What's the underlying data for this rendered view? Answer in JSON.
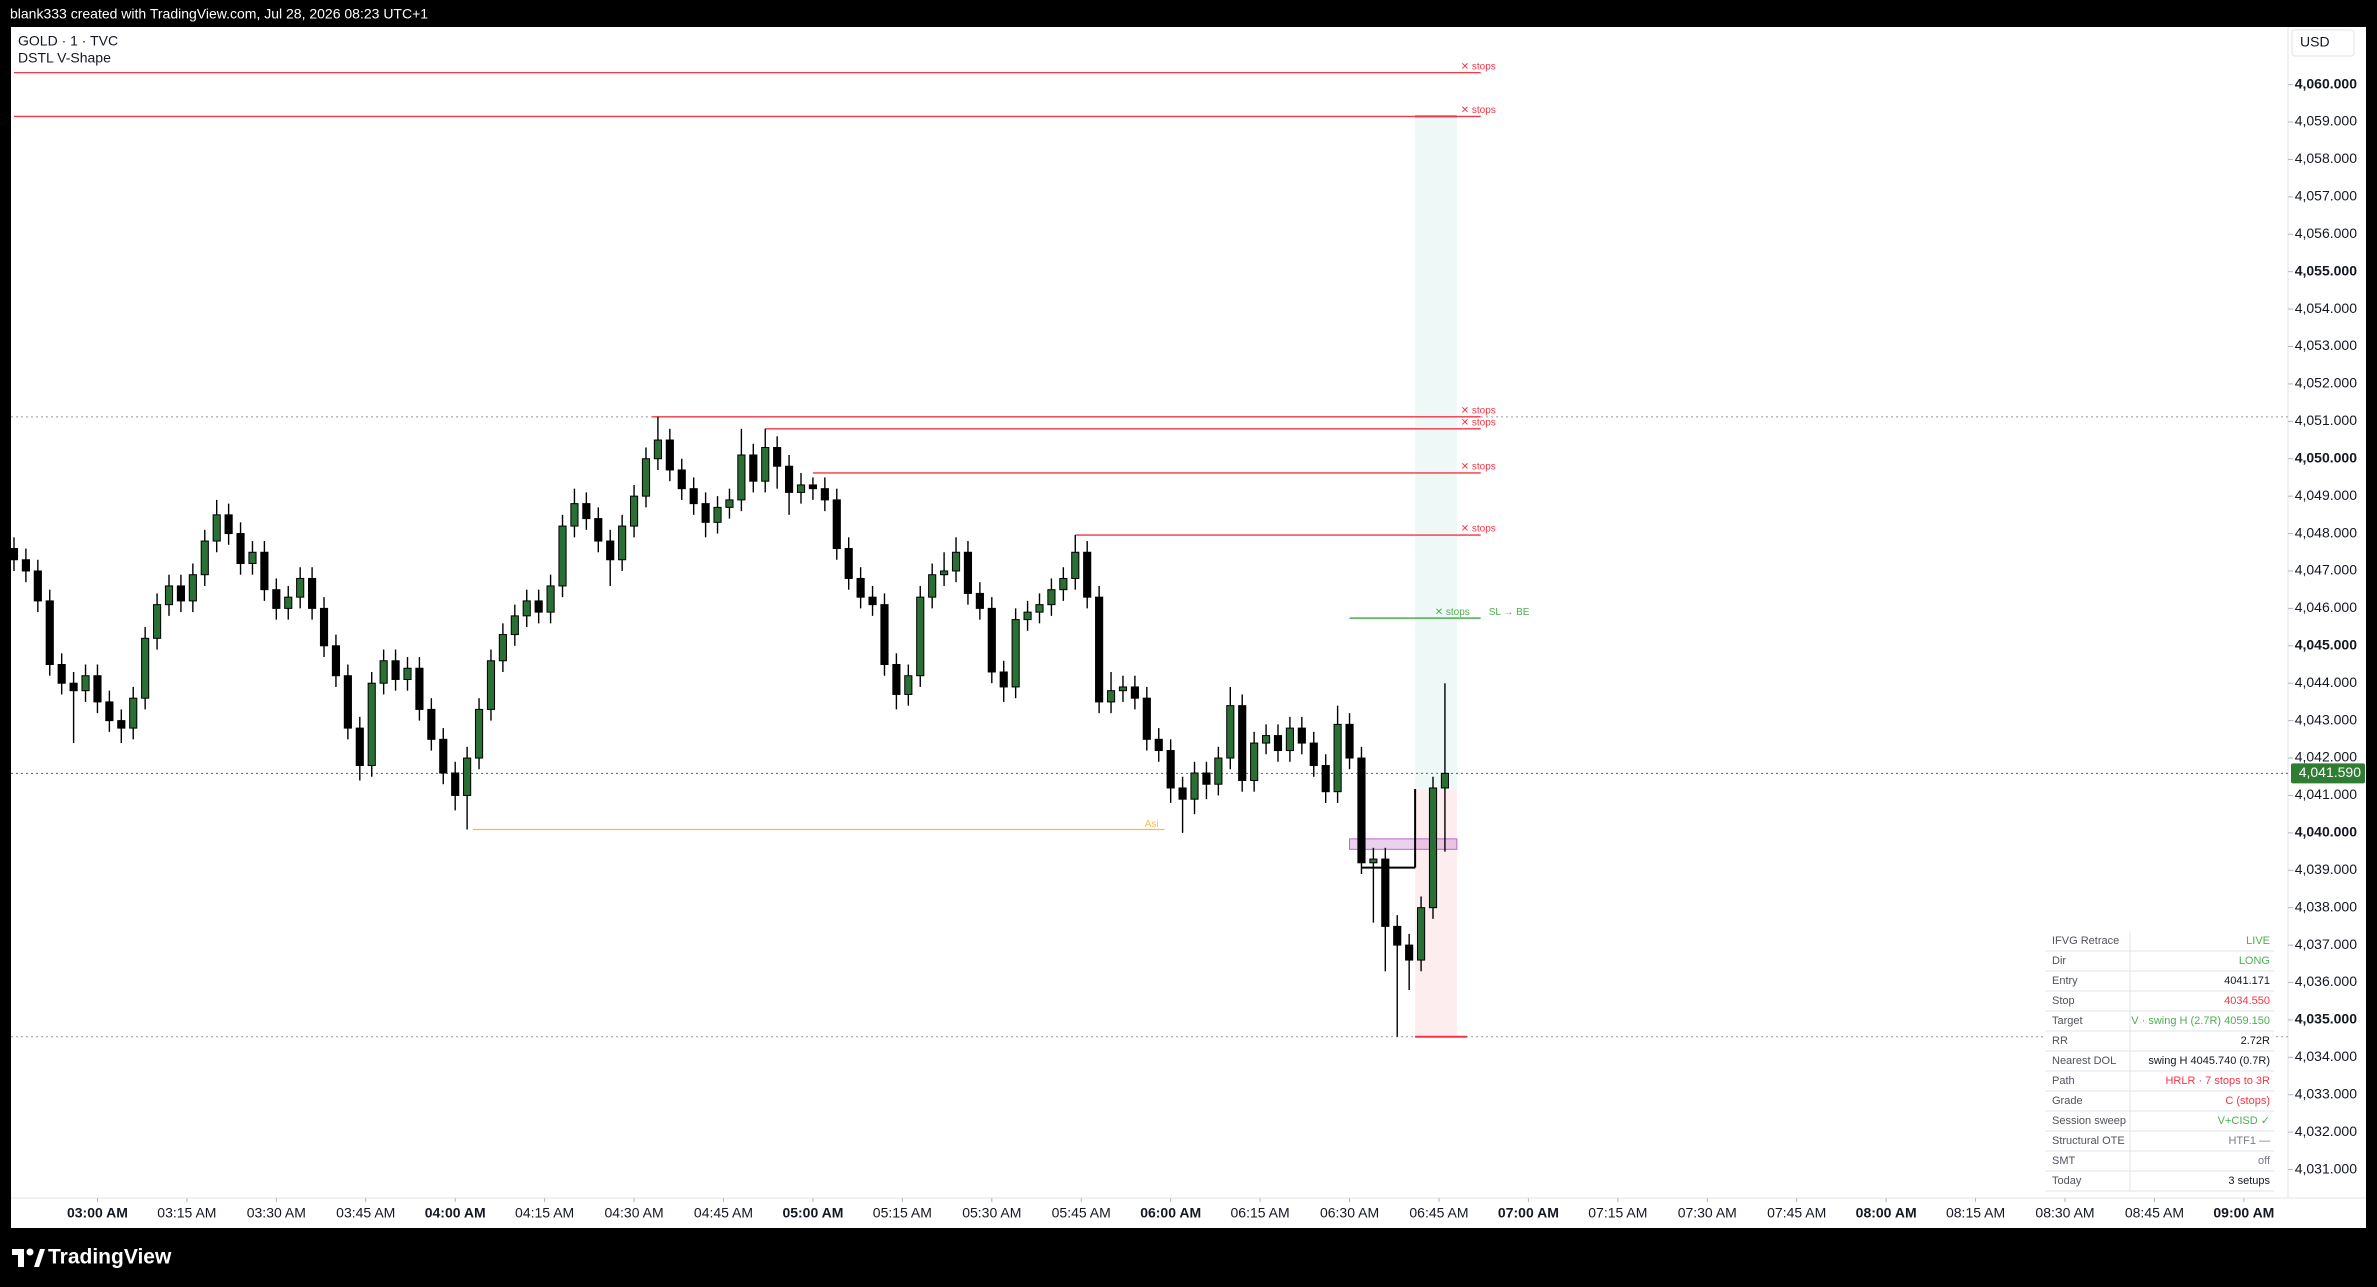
{
  "header": {
    "attribution": "blank333 created with TradingView.com, Jul 28, 2026 08:23 UTC+1",
    "brand": "TradingView"
  },
  "chart_data": {
    "type": "candlestick",
    "symbol": "GOLD · 1 · TVC",
    "indicator": "DSTL V-Shape",
    "currency": "USD",
    "x": [
      166,
      168,
      170,
      172,
      174,
      176,
      178,
      180,
      182,
      184,
      186,
      188,
      190,
      192,
      194,
      196,
      198,
      200,
      202,
      204,
      206,
      208,
      210,
      212,
      214,
      216,
      218,
      220,
      222,
      224,
      226,
      228,
      230,
      232,
      234,
      236,
      238,
      240,
      242,
      244,
      246,
      248,
      250,
      252,
      254,
      256,
      258,
      260,
      262,
      264,
      266,
      268,
      270,
      272,
      274,
      276,
      278,
      280,
      282,
      284,
      286,
      288,
      290,
      292,
      294,
      296,
      298,
      300,
      302,
      304,
      306,
      308,
      310,
      312,
      314,
      316,
      318,
      320,
      322,
      324,
      326,
      328,
      330,
      332,
      334,
      336,
      338,
      340,
      342,
      344,
      346,
      348,
      350,
      352,
      354,
      356,
      358,
      360,
      362,
      364,
      366,
      368,
      370,
      372,
      374,
      376,
      378,
      380,
      382,
      384,
      386,
      388,
      390,
      392,
      394,
      396,
      398,
      400,
      402,
      404,
      406
    ],
    "open": [
      4047.6,
      4047.3,
      4047.0,
      4046.2,
      4044.5,
      4044.0,
      4043.8,
      4044.2,
      4043.5,
      4043.0,
      4042.8,
      4043.6,
      4045.2,
      4046.1,
      4046.6,
      4046.2,
      4046.9,
      4047.8,
      4048.5,
      4048.0,
      4047.2,
      4047.5,
      4046.5,
      4046.0,
      4046.3,
      4046.8,
      4046.0,
      4045.0,
      4044.2,
      4042.8,
      4041.8,
      4044.0,
      4044.6,
      4044.1,
      4044.4,
      4043.3,
      4042.5,
      4041.6,
      4041.0,
      4042.0,
      4043.3,
      4044.6,
      4045.3,
      4045.8,
      4046.2,
      4045.9,
      4046.6,
      4048.2,
      4048.8,
      4048.4,
      4047.8,
      4047.3,
      4048.2,
      4049.0,
      4050.0,
      4050.5,
      4049.7,
      4049.2,
      4048.8,
      4048.3,
      4048.7,
      4048.9,
      4050.1,
      4049.4,
      4050.3,
      4049.8,
      4049.1,
      4049.3,
      4049.2,
      4048.9,
      4047.6,
      4046.8,
      4046.3,
      4046.1,
      4044.5,
      4043.7,
      4044.2,
      4046.3,
      4046.9,
      4047.0,
      4047.5,
      4046.4,
      4046.0,
      4044.3,
      4043.9,
      4045.7,
      4045.9,
      4046.1,
      4046.5,
      4046.8,
      4047.5,
      4046.3,
      4043.5,
      4043.8,
      4043.9,
      4043.6,
      4042.5,
      4042.2,
      4041.2,
      4040.9,
      4041.6,
      4041.3,
      4042.0,
      4043.4,
      4041.4,
      4042.4,
      4042.6,
      4042.2,
      4042.8,
      4042.4,
      4041.8,
      4041.1,
      4042.9,
      4042.0,
      4039.2,
      4039.3,
      4037.5,
      4037.0,
      4036.6,
      4038.0,
      4041.2
    ],
    "high": [
      4047.9,
      4047.6,
      4047.3,
      4046.5,
      4044.8,
      4044.3,
      4044.5,
      4044.5,
      4043.8,
      4043.3,
      4043.9,
      4045.5,
      4046.4,
      4046.9,
      4046.9,
      4047.2,
      4048.1,
      4048.9,
      4048.8,
      4048.3,
      4047.8,
      4047.8,
      4046.8,
      4046.6,
      4047.1,
      4047.1,
      4046.3,
      4045.3,
      4044.5,
      4043.1,
      4044.3,
      4044.9,
      4044.9,
      4044.7,
      4044.7,
      4043.6,
      4042.8,
      4041.9,
      4042.3,
      4043.6,
      4044.9,
      4045.6,
      4046.1,
      4046.5,
      4046.5,
      4046.9,
      4048.5,
      4049.2,
      4049.1,
      4048.7,
      4048.1,
      4048.5,
      4049.3,
      4050.3,
      4051.12,
      4050.8,
      4050.0,
      4049.5,
      4049.1,
      4049.0,
      4049.2,
      4050.8,
      4050.4,
      4050.8,
      4050.6,
      4050.1,
      4049.62,
      4049.5,
      4049.5,
      4049.2,
      4047.9,
      4047.1,
      4046.6,
      4046.4,
      4044.8,
      4044.5,
      4046.6,
      4047.2,
      4047.5,
      4047.9,
      4047.8,
      4046.7,
      4046.3,
      4044.6,
      4046.0,
      4046.2,
      4046.4,
      4046.8,
      4047.1,
      4047.96,
      4047.8,
      4046.6,
      4044.3,
      4044.2,
      4044.2,
      4043.9,
      4042.8,
      4042.5,
      4041.5,
      4041.9,
      4041.9,
      4042.3,
      4043.9,
      4043.7,
      4042.7,
      4042.9,
      4042.9,
      4043.1,
      4043.1,
      4042.7,
      4042.1,
      4043.4,
      4043.2,
      4042.3,
      4039.6,
      4039.6,
      4037.8,
      4037.3,
      4038.3,
      4041.5,
      4044.0
    ],
    "low": [
      4047.0,
      4046.7,
      4045.9,
      4044.2,
      4043.7,
      4042.4,
      4043.5,
      4043.2,
      4042.7,
      4042.4,
      4042.5,
      4043.3,
      4044.9,
      4045.8,
      4045.9,
      4045.9,
      4046.6,
      4047.5,
      4047.7,
      4046.9,
      4046.9,
      4046.2,
      4045.7,
      4045.7,
      4046.0,
      4045.7,
      4044.7,
      4043.9,
      4042.5,
      4041.4,
      4041.5,
      4043.7,
      4043.8,
      4043.8,
      4043.0,
      4042.2,
      4041.3,
      4040.6,
      4040.09,
      4041.7,
      4043.0,
      4044.3,
      4045.0,
      4045.5,
      4045.6,
      4045.6,
      4046.3,
      4047.9,
      4048.1,
      4047.5,
      4046.6,
      4047.0,
      4047.9,
      4048.7,
      4049.7,
      4049.4,
      4048.9,
      4048.5,
      4047.9,
      4048.0,
      4048.4,
      4048.6,
      4049.1,
      4049.1,
      4049.2,
      4048.5,
      4048.8,
      4048.9,
      4048.6,
      4047.3,
      4046.5,
      4046.0,
      4045.8,
      4044.2,
      4043.3,
      4043.4,
      4043.9,
      4046.0,
      4046.6,
      4046.7,
      4046.1,
      4045.7,
      4044.0,
      4043.5,
      4043.6,
      4045.4,
      4045.6,
      4045.8,
      4046.2,
      4046.5,
      4046.0,
      4043.2,
      4043.2,
      4043.5,
      4043.3,
      4042.2,
      4041.9,
      4040.8,
      4040.0,
      4040.5,
      4040.9,
      4041.0,
      4041.7,
      4041.1,
      4041.1,
      4042.1,
      4041.9,
      4041.9,
      4042.1,
      4041.5,
      4040.8,
      4040.8,
      4041.7,
      4038.9,
      4037.6,
      4036.3,
      4034.55,
      4035.8,
      4036.3,
      4037.7,
      4039.5
    ],
    "close": [
      4047.3,
      4047.0,
      4046.2,
      4044.5,
      4044.0,
      4043.8,
      4044.2,
      4043.5,
      4043.0,
      4042.8,
      4043.6,
      4045.2,
      4046.1,
      4046.6,
      4046.2,
      4046.9,
      4047.8,
      4048.5,
      4048.0,
      4047.2,
      4047.5,
      4046.5,
      4046.0,
      4046.3,
      4046.8,
      4046.0,
      4045.0,
      4044.2,
      4042.8,
      4041.8,
      4044.0,
      4044.6,
      4044.1,
      4044.4,
      4043.3,
      4042.5,
      4041.6,
      4041.0,
      4042.0,
      4043.3,
      4044.6,
      4045.3,
      4045.8,
      4046.2,
      4045.9,
      4046.6,
      4048.2,
      4048.8,
      4048.4,
      4047.8,
      4047.3,
      4048.2,
      4049.0,
      4050.0,
      4050.5,
      4049.7,
      4049.2,
      4048.8,
      4048.3,
      4048.7,
      4048.9,
      4050.1,
      4049.4,
      4050.3,
      4049.8,
      4049.1,
      4049.3,
      4049.2,
      4048.9,
      4047.6,
      4046.8,
      4046.3,
      4046.1,
      4044.5,
      4043.7,
      4044.2,
      4046.3,
      4046.9,
      4047.0,
      4047.5,
      4046.4,
      4046.0,
      4044.3,
      4043.9,
      4045.7,
      4045.9,
      4046.1,
      4046.5,
      4046.8,
      4047.5,
      4046.3,
      4043.5,
      4043.8,
      4043.9,
      4043.6,
      4042.5,
      4042.2,
      4041.2,
      4040.9,
      4041.6,
      4041.3,
      4042.0,
      4043.4,
      4041.4,
      4042.4,
      4042.6,
      4042.2,
      4042.8,
      4042.4,
      4041.8,
      4041.1,
      4042.9,
      4042.0,
      4039.2,
      4039.3,
      4037.5,
      4037.0,
      4036.6,
      4038.0,
      4041.2,
      4041.59
    ],
    "up_color": "#2a6f34",
    "down_color": "#000000",
    "xlim": [
      165.5,
      547.4
    ],
    "ylim": [
      4030.24,
      4061.54
    ],
    "xticks": [
      {
        "value": 180,
        "label": "03:00 AM"
      },
      {
        "value": 195,
        "label": "03:15 AM"
      },
      {
        "value": 210,
        "label": "03:30 AM"
      },
      {
        "value": 225,
        "label": "03:45 AM"
      },
      {
        "value": 240,
        "label": "04:00 AM"
      },
      {
        "value": 255,
        "label": "04:15 AM"
      },
      {
        "value": 270,
        "label": "04:30 AM"
      },
      {
        "value": 285,
        "label": "04:45 AM"
      },
      {
        "value": 300,
        "label": "05:00 AM"
      },
      {
        "value": 315,
        "label": "05:15 AM"
      },
      {
        "value": 330,
        "label": "05:30 AM"
      },
      {
        "value": 345,
        "label": "05:45 AM"
      },
      {
        "value": 360,
        "label": "06:00 AM"
      },
      {
        "value": 375,
        "label": "06:15 AM"
      },
      {
        "value": 390,
        "label": "06:30 AM"
      },
      {
        "value": 405,
        "label": "06:45 AM"
      },
      {
        "value": 420,
        "label": "07:00 AM"
      },
      {
        "value": 435,
        "label": "07:15 AM"
      },
      {
        "value": 450,
        "label": "07:30 AM"
      },
      {
        "value": 465,
        "label": "07:45 AM"
      },
      {
        "value": 480,
        "label": "08:00 AM"
      },
      {
        "value": 495,
        "label": "08:15 AM"
      },
      {
        "value": 510,
        "label": "08:30 AM"
      },
      {
        "value": 525,
        "label": "08:45 AM"
      },
      {
        "value": 540,
        "label": "09:00 AM"
      }
    ],
    "yticks": [
      {
        "value": 4031,
        "label": "4,031.000"
      },
      {
        "value": 4032,
        "label": "4,032.000"
      },
      {
        "value": 4033,
        "label": "4,033.000"
      },
      {
        "value": 4034,
        "label": "4,034.000"
      },
      {
        "value": 4035,
        "label": "4,035.000"
      },
      {
        "value": 4036,
        "label": "4,036.000"
      },
      {
        "value": 4037,
        "label": "4,037.000"
      },
      {
        "value": 4038,
        "label": "4,038.000"
      },
      {
        "value": 4039,
        "label": "4,039.000"
      },
      {
        "value": 4040,
        "label": "4,040.000"
      },
      {
        "value": 4041,
        "label": "4,041.000"
      },
      {
        "value": 4042,
        "label": "4,042.000"
      },
      {
        "value": 4043,
        "label": "4,043.000"
      },
      {
        "value": 4044,
        "label": "4,044.000"
      },
      {
        "value": 4045,
        "label": "4,045.000"
      },
      {
        "value": 4046,
        "label": "4,046.000"
      },
      {
        "value": 4047,
        "label": "4,047.000"
      },
      {
        "value": 4048,
        "label": "4,048.000"
      },
      {
        "value": 4049,
        "label": "4,049.000"
      },
      {
        "value": 4050,
        "label": "4,050.000"
      },
      {
        "value": 4051,
        "label": "4,051.000"
      },
      {
        "value": 4052,
        "label": "4,052.000"
      },
      {
        "value": 4053,
        "label": "4,053.000"
      },
      {
        "value": 4054,
        "label": "4,054.000"
      },
      {
        "value": 4055,
        "label": "4,055.000"
      },
      {
        "value": 4056,
        "label": "4,056.000"
      },
      {
        "value": 4057,
        "label": "4,057.000"
      },
      {
        "value": 4058,
        "label": "4,058.000"
      },
      {
        "value": 4059,
        "label": "4,059.000"
      },
      {
        "value": 4060,
        "label": "4,060.000"
      }
    ],
    "last_price": {
      "value": 4041.59,
      "label": "4,041.590",
      "color": "#2e7d32"
    },
    "levels": [
      {
        "price": 4060.32,
        "from": 166,
        "label": "✕ stops",
        "color": "#f23645"
      },
      {
        "price": 4059.15,
        "from": 166,
        "label": "✕ stops",
        "color": "#f23645"
      },
      {
        "price": 4051.12,
        "from": 273,
        "label": "✕ stops",
        "color": "#f23645"
      },
      {
        "price": 4050.8,
        "from": 292,
        "label": "✕ stops",
        "color": "#f23645"
      },
      {
        "price": 4049.62,
        "from": 300,
        "label": "✕ stops",
        "color": "#f23645"
      },
      {
        "price": 4047.96,
        "from": 344,
        "label": "✕ stops",
        "color": "#f23645"
      }
    ],
    "levels_end": 412,
    "be_level": {
      "price": 4045.74,
      "from": 390,
      "label": "✕ stops",
      "note": "SL → BE",
      "color": "#4caf50"
    },
    "asia_low": {
      "price": 4040.09,
      "from": 243,
      "to": 359,
      "label": "Asi",
      "color": "#ffb74d"
    },
    "position": {
      "from": 401,
      "to": 408,
      "entry": 4041.171,
      "target": 4059.15,
      "stop": 4034.55
    },
    "fvg": {
      "from": 390,
      "to": 408,
      "top": 4039.84,
      "bottom": 4039.56
    },
    "structure": {
      "price": 4039.07,
      "from": 392,
      "to": 401
    },
    "dotted_levels": [
      4051.12,
      4034.55
    ]
  },
  "table": {
    "rows": [
      {
        "label": "IFVG Retrace",
        "value": "LIVE",
        "color": "#4caf50"
      },
      {
        "label": "Dir",
        "value": "LONG",
        "color": "#4caf50"
      },
      {
        "label": "Entry",
        "value": "4041.171",
        "color": "#131722"
      },
      {
        "label": "Stop",
        "value": "4034.550",
        "color": "#f23645"
      },
      {
        "label": "Target",
        "value": "V · swing H (2.7R)  4059.150",
        "color": "#4caf50"
      },
      {
        "label": "RR",
        "value": "2.72R",
        "color": "#131722"
      },
      {
        "label": "Nearest DOL",
        "value": "swing H  4045.740 (0.7R)",
        "color": "#131722"
      },
      {
        "label": "Path",
        "value": "HRLR · 7 stops to 3R",
        "color": "#f23645"
      },
      {
        "label": "Grade",
        "value": "C (stops)",
        "color": "#f23645"
      },
      {
        "label": "Session sweep",
        "value": "V+CISD ✓",
        "color": "#4caf50"
      },
      {
        "label": "Structural OTE",
        "value": "HTF1 —",
        "color": "#787b86"
      },
      {
        "label": "SMT",
        "value": "off",
        "color": "#787b86"
      },
      {
        "label": "Today",
        "value": "3 setups",
        "color": "#131722"
      }
    ]
  }
}
